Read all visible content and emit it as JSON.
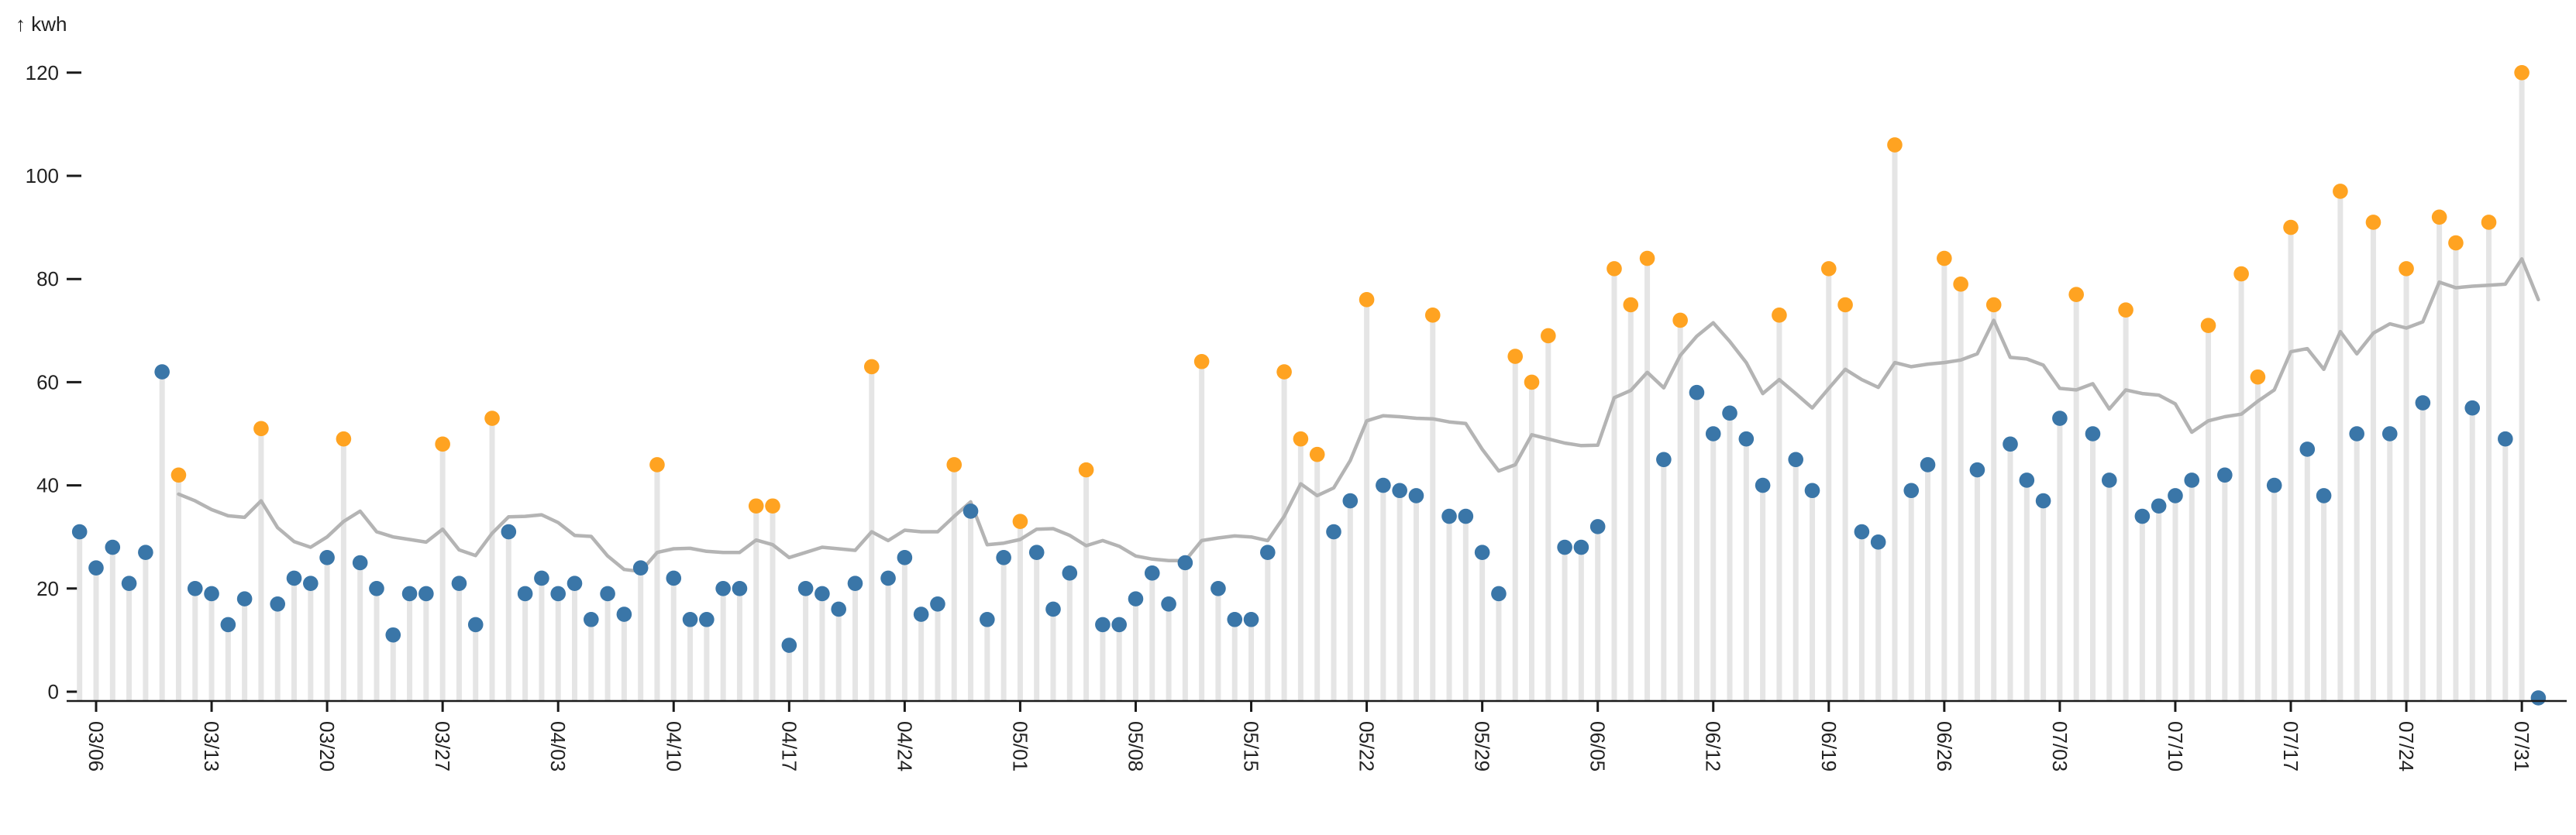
{
  "title": "↑ kwh",
  "colors": {
    "point_blue": "#3a76a8",
    "point_orange": "#ffa321",
    "stem_gray": "#e5e5e5",
    "trend_gray": "#b4b4b4",
    "axis_black": "#1a1a1a",
    "label_dark": "#222222"
  },
  "y_axis": {
    "unit_label": "↑ kwh",
    "ticks": [
      0,
      20,
      40,
      60,
      80,
      100,
      120
    ]
  },
  "x_axis": {
    "tick_labels": [
      "03/06",
      "03/13",
      "03/20",
      "03/27",
      "04/03",
      "04/10",
      "04/17",
      "04/24",
      "05/01",
      "05/08",
      "05/15",
      "05/22",
      "05/29",
      "06/05",
      "06/12",
      "06/19",
      "06/26",
      "07/03",
      "07/10",
      "07/17",
      "07/24",
      "07/31"
    ]
  },
  "chart_data": {
    "type": "scatter",
    "subtype": "lollipop-daily-with-trend",
    "title": "",
    "xlabel": "",
    "ylabel": "kwh",
    "ylim": [
      0,
      120
    ],
    "grid": false,
    "legend": "none",
    "x": [
      "03/05",
      "03/06",
      "03/07",
      "03/08",
      "03/09",
      "03/10",
      "03/11",
      "03/12",
      "03/13",
      "03/14",
      "03/15",
      "03/16",
      "03/17",
      "03/18",
      "03/19",
      "03/20",
      "03/21",
      "03/22",
      "03/23",
      "03/24",
      "03/25",
      "03/26",
      "03/27",
      "03/28",
      "03/29",
      "03/30",
      "03/31",
      "04/01",
      "04/02",
      "04/03",
      "04/04",
      "04/05",
      "04/06",
      "04/07",
      "04/08",
      "04/09",
      "04/10",
      "04/11",
      "04/12",
      "04/13",
      "04/14",
      "04/15",
      "04/16",
      "04/17",
      "04/18",
      "04/19",
      "04/20",
      "04/21",
      "04/22",
      "04/23",
      "04/24",
      "04/25",
      "04/26",
      "04/27",
      "04/28",
      "04/29",
      "04/30",
      "05/01",
      "05/02",
      "05/03",
      "05/04",
      "05/05",
      "05/06",
      "05/07",
      "05/08",
      "05/09",
      "05/10",
      "05/11",
      "05/12",
      "05/13",
      "05/14",
      "05/15",
      "05/16",
      "05/17",
      "05/18",
      "05/19",
      "05/20",
      "05/21",
      "05/22",
      "05/23",
      "05/24",
      "05/25",
      "05/26",
      "05/27",
      "05/28",
      "05/29",
      "05/30",
      "05/31",
      "06/01",
      "06/02",
      "06/03",
      "06/04",
      "06/05",
      "06/06",
      "06/07",
      "06/08",
      "06/09",
      "06/10",
      "06/11",
      "06/12",
      "06/13",
      "06/14",
      "06/15",
      "06/16",
      "06/17",
      "06/18",
      "06/19",
      "06/20",
      "06/21",
      "06/22",
      "06/23",
      "06/24",
      "06/25",
      "06/26",
      "06/27",
      "06/28",
      "06/29",
      "06/30",
      "07/01",
      "07/02",
      "07/03",
      "07/04",
      "07/05",
      "07/06",
      "07/07",
      "07/08",
      "07/09",
      "07/10",
      "07/11",
      "07/12",
      "07/13",
      "07/14",
      "07/15",
      "07/16",
      "07/17",
      "07/18",
      "07/19",
      "07/20",
      "07/21",
      "07/22",
      "07/23",
      "07/24",
      "07/25",
      "07/26",
      "07/27",
      "07/28",
      "07/29",
      "07/30",
      "07/31",
      "08/01"
    ],
    "series": [
      {
        "name": "daily kwh",
        "values": [
          31,
          24,
          28,
          21,
          27,
          62,
          42,
          20,
          19,
          13,
          18,
          51,
          17,
          22,
          21,
          26,
          49,
          25,
          20,
          11,
          19,
          19,
          48,
          21,
          13,
          53,
          31,
          19,
          22,
          19,
          21,
          14,
          19,
          15,
          24,
          44,
          22,
          14,
          14,
          20,
          20,
          36,
          36,
          9,
          20,
          19,
          16,
          21,
          63,
          22,
          26,
          15,
          17,
          44,
          35,
          14,
          26,
          33,
          27,
          16,
          23,
          43,
          13,
          13,
          18,
          23,
          17,
          25,
          64,
          20,
          14,
          14,
          27,
          62,
          49,
          46,
          31,
          37,
          76,
          40,
          39,
          38,
          73,
          34,
          34,
          27,
          19,
          65,
          60,
          69,
          28,
          28,
          32,
          82,
          75,
          84,
          45,
          72,
          58,
          50,
          54,
          49,
          40,
          73,
          45,
          39,
          82,
          75,
          31,
          29,
          106,
          39,
          44,
          84,
          79,
          43,
          75,
          48,
          41,
          37,
          53,
          77,
          50,
          41,
          74,
          34,
          36,
          38,
          41,
          71,
          42,
          81,
          61,
          40,
          90,
          47,
          38,
          97,
          50,
          91,
          50,
          82,
          56,
          92,
          87,
          55,
          91,
          49,
          120,
          0
        ],
        "highlight_orange": [
          0,
          0,
          0,
          0,
          0,
          0,
          1,
          0,
          0,
          0,
          0,
          1,
          0,
          0,
          0,
          0,
          1,
          0,
          0,
          0,
          0,
          0,
          1,
          0,
          0,
          1,
          0,
          0,
          0,
          0,
          0,
          0,
          0,
          0,
          0,
          1,
          0,
          0,
          0,
          0,
          0,
          1,
          1,
          0,
          0,
          0,
          0,
          0,
          1,
          0,
          0,
          0,
          0,
          1,
          0,
          0,
          0,
          1,
          0,
          0,
          0,
          1,
          0,
          0,
          0,
          0,
          0,
          0,
          1,
          0,
          0,
          0,
          0,
          1,
          1,
          1,
          0,
          0,
          1,
          0,
          0,
          0,
          1,
          0,
          0,
          0,
          0,
          1,
          1,
          1,
          0,
          0,
          0,
          1,
          1,
          1,
          0,
          1,
          0,
          0,
          0,
          0,
          0,
          1,
          0,
          0,
          1,
          1,
          0,
          0,
          1,
          0,
          0,
          1,
          1,
          0,
          1,
          0,
          0,
          0,
          0,
          1,
          0,
          0,
          1,
          0,
          0,
          0,
          0,
          1,
          0,
          1,
          1,
          0,
          1,
          0,
          0,
          1,
          0,
          1,
          0,
          1,
          0,
          1,
          1,
          0,
          1,
          0,
          1,
          0
        ]
      },
      {
        "name": "trend line (rolling mean, gray)",
        "values": [
          null,
          null,
          null,
          null,
          null,
          null,
          38.3,
          37,
          35.3,
          34.1,
          33.8,
          37,
          31.8,
          29.1,
          28,
          30,
          33,
          35,
          31,
          30,
          29.5,
          29,
          31.5,
          27.5,
          26.4,
          30.7,
          33.9,
          34,
          34.3,
          32.8,
          30.3,
          30.1,
          26.3,
          23.7,
          23.3,
          27,
          27.7,
          27.8,
          27.2,
          27,
          27,
          29.4,
          28.5,
          26,
          27,
          28,
          27.7,
          27.4,
          31,
          29.3,
          31.3,
          31,
          31,
          34,
          36.8,
          28.5,
          28.8,
          29.5,
          31.5,
          31.6,
          30.3,
          28.3,
          29.3,
          28.2,
          26.3,
          25.7,
          25.4,
          25.4,
          29.3,
          29.8,
          30.2,
          30,
          29.3,
          34,
          40.3,
          38,
          39.5,
          44.8,
          52.5,
          53.5,
          53.3,
          53,
          52.9,
          52.3,
          52,
          47,
          42.8,
          44,
          49.8,
          49,
          48.2,
          47.7,
          47.8,
          57,
          58.4,
          61.9,
          58.9,
          65.2,
          68.9,
          71.5,
          67.9,
          63.8,
          57.8,
          60.5,
          57.8,
          55,
          58.8,
          62.5,
          60.5,
          59,
          63.8,
          63,
          63.5,
          63.8,
          64.3,
          65.5,
          72,
          64.8,
          64.5,
          63.3,
          58.8,
          58.5,
          59.7,
          54.8,
          58.5,
          57.8,
          57.5,
          55.8,
          50.3,
          52.5,
          53.3,
          53.8,
          56.3,
          58.5,
          65.9,
          66.5,
          62.5,
          69.8,
          65.5,
          69.5,
          71.3,
          70.5,
          71.7,
          79.4,
          78.3,
          78.6,
          78.8,
          79,
          83.9,
          76
        ]
      }
    ]
  }
}
